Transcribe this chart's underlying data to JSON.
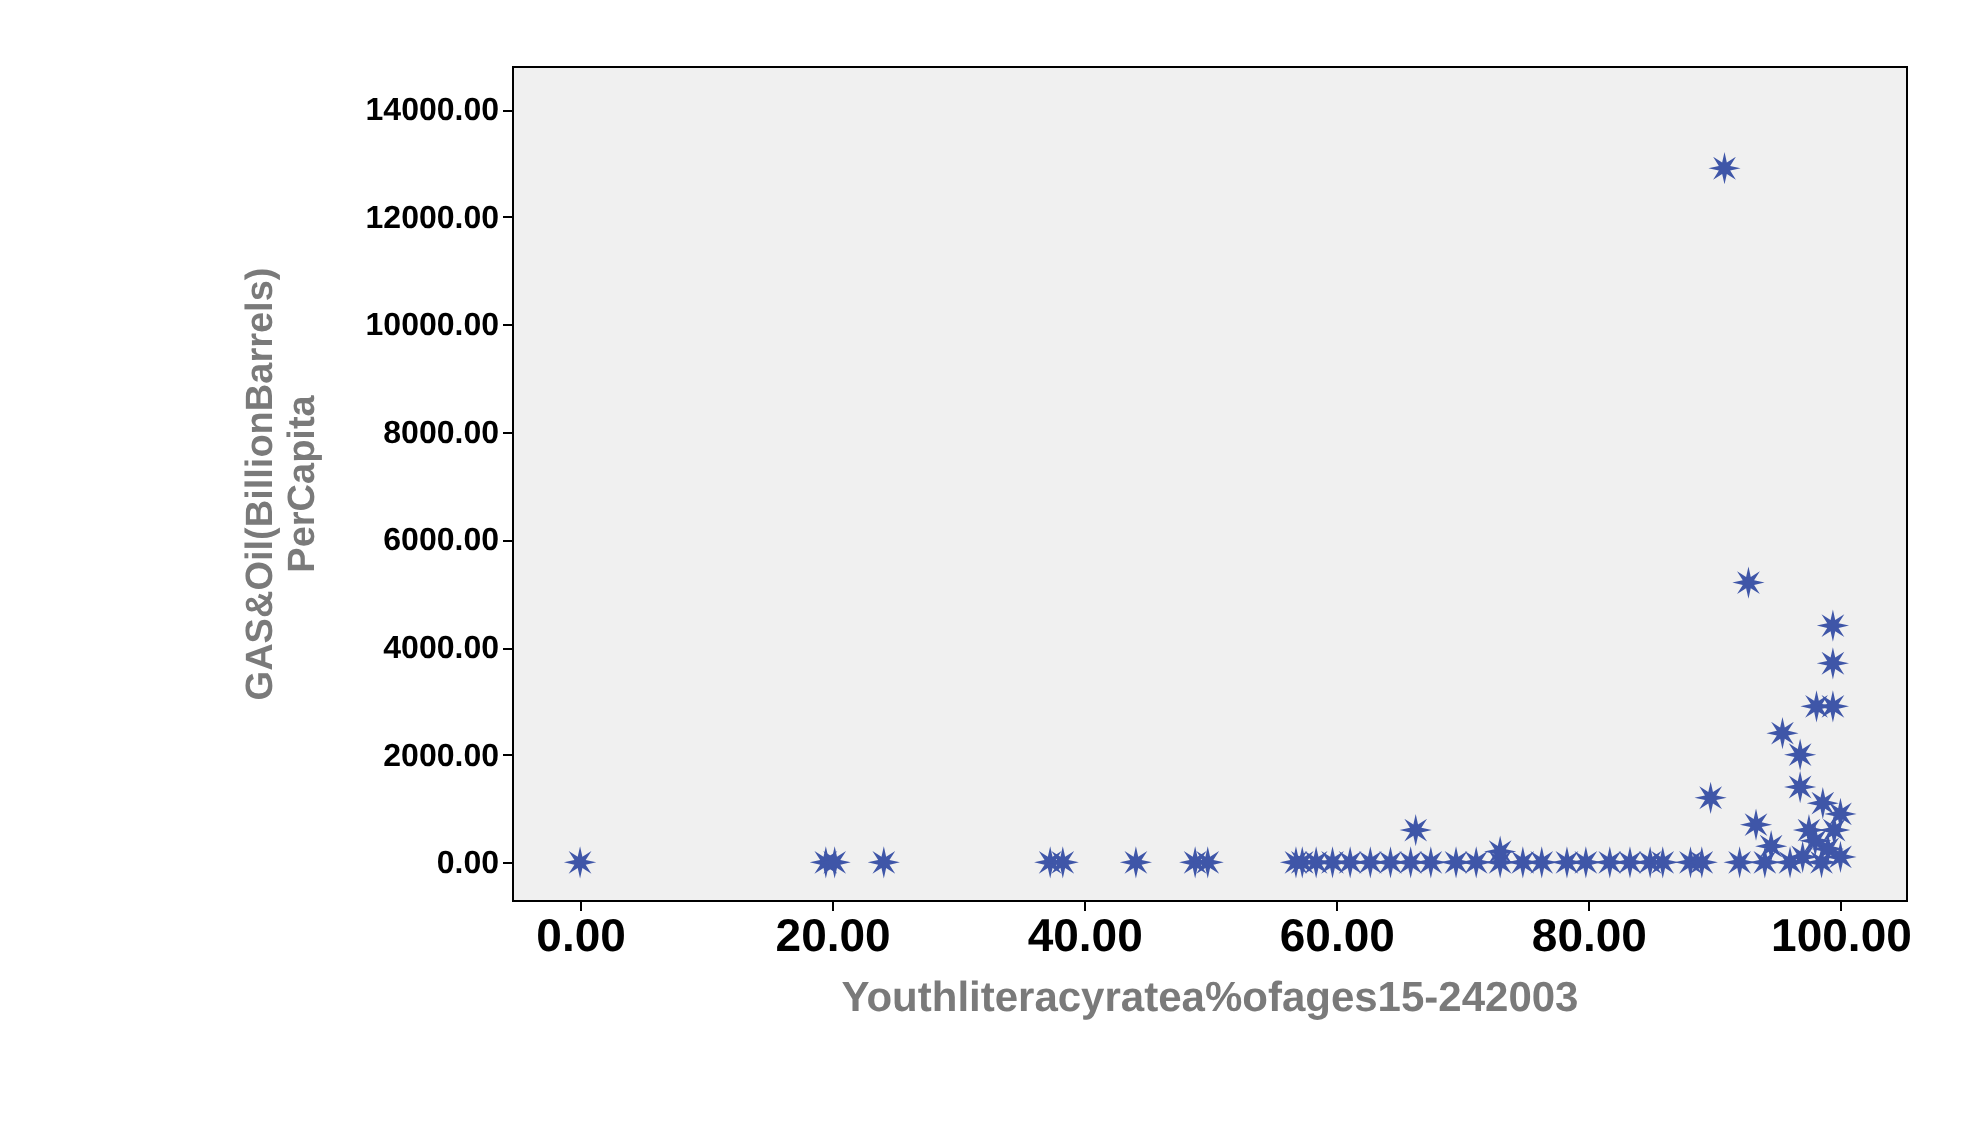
{
  "chart_data": {
    "type": "scatter",
    "xlabel": "Youthliteracyratea%ofages15-242003",
    "ylabel": "GAS&Oil(BillionBarrels)\nPerCapita",
    "x": [
      0,
      19.5,
      20.2,
      24.1,
      37.3,
      38.3,
      44.1,
      48.8,
      49.8,
      57.3,
      56.8,
      58.4,
      59.7,
      61.1,
      62.7,
      64.3,
      65.9,
      67.5,
      69.5,
      71.1,
      73,
      74.8,
      76.3,
      78.3,
      79.8,
      81.7,
      83.3,
      84.9,
      85.9,
      88.1,
      89,
      73,
      66.3,
      92.7,
      99.4,
      99.4,
      98.1,
      99.4,
      95.4,
      96.8,
      96.8,
      89.7,
      98.6,
      93.3,
      90.8,
      92,
      94,
      96,
      97.5,
      100,
      100,
      94.5,
      98,
      99,
      98.5,
      99.5,
      97
    ],
    "values": [
      0,
      0,
      0,
      0,
      0,
      0,
      0,
      0,
      0,
      0,
      0,
      0,
      0,
      0,
      0,
      0,
      0,
      0,
      0,
      0,
      0,
      0,
      0,
      0,
      0,
      0,
      0,
      0,
      0,
      0,
      0,
      200,
      600,
      5200,
      4400,
      3700,
      2900,
      2900,
      2400,
      2000,
      1400,
      1200,
      1100,
      700,
      12900,
      0,
      0,
      0,
      600,
      100,
      900,
      300,
      400,
      250,
      0,
      600,
      100
    ],
    "color": "#3f56a8",
    "marker": "star",
    "xlim": [
      -5.4,
      105.2
    ],
    "ylim": [
      -700,
      14800
    ],
    "xticks": [
      {
        "value": 0,
        "label": "0.00"
      },
      {
        "value": 20,
        "label": "20.00"
      },
      {
        "value": 40,
        "label": "40.00"
      },
      {
        "value": 60,
        "label": "60.00"
      },
      {
        "value": 80,
        "label": "80.00"
      },
      {
        "value": 100,
        "label": "100.00"
      }
    ],
    "yticks": [
      {
        "value": 0,
        "label": "0.00"
      },
      {
        "value": 2000,
        "label": "2000.00"
      },
      {
        "value": 4000,
        "label": "4000.00"
      },
      {
        "value": 6000,
        "label": "6000.00"
      },
      {
        "value": 8000,
        "label": "8000.00"
      },
      {
        "value": 10000,
        "label": "10000.00"
      },
      {
        "value": 12000,
        "label": "12000.00"
      },
      {
        "value": 14000,
        "label": "14000.00"
      }
    ],
    "grid": false
  }
}
